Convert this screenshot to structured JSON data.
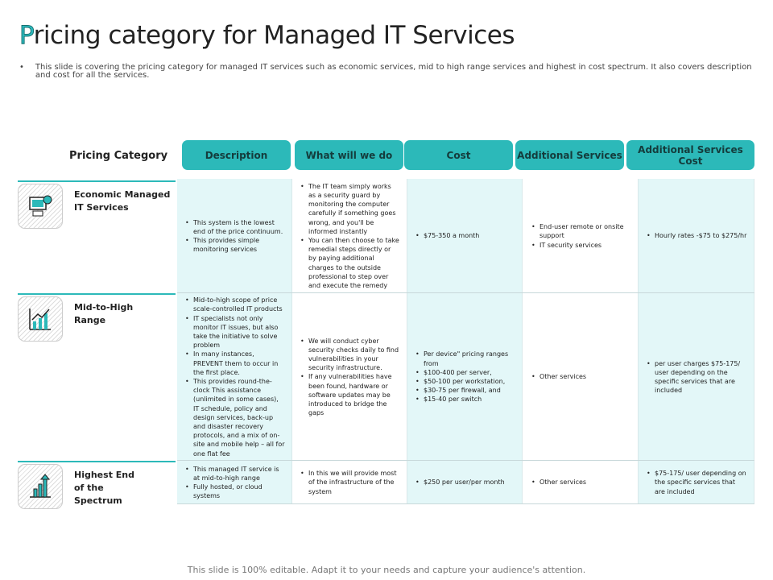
{
  "title": {
    "first": "P",
    "rest": "ricing category for Managed IT Services"
  },
  "intro": "This slide is covering the pricing category for managed IT services such as economic services, mid to high range services and highest in cost spectrum. It also covers description and cost for all the services.",
  "header_label": "Pricing Category",
  "columns": [
    "Description",
    "What will we do",
    "Cost",
    "Additional Services",
    "Additional Services Cost"
  ],
  "rows": [
    {
      "category": "Economic Managed IT Services",
      "icon": "computer-dollar-icon",
      "description": [
        "This system is the lowest end of the price continuum.",
        "This provides simple monitoring services"
      ],
      "what": [
        "The IT team simply works as a security guard by monitoring the computer carefully if something goes wrong, and you'll be informed instantly",
        "You can then choose to take remedial steps directly or by paying additional charges to the outside professional to step over and execute the remedy"
      ],
      "cost": [
        "$75-350 a month"
      ],
      "additional": [
        "End-user remote or onsite support",
        "IT security services"
      ],
      "additional_cost": [
        "Hourly rates -$75 to $275/hr"
      ]
    },
    {
      "category": "Mid-to-High Range",
      "icon": "growth-chart-icon",
      "description": [
        "Mid-to-high scope of price scale-controlled IT products",
        "IT specialists not only monitor IT issues, but also take the initiative to solve problem",
        "In many instances, PREVENT them to occur in the first place.",
        "This provides round-the-clock This assistance (unlimited in some cases), IT schedule, policy and design services, back-up and disaster recovery protocols, and a mix of on-site and mobile help – all for one flat fee"
      ],
      "what": [
        "We will conduct cyber security checks daily to find vulnerabilities in your security infrastructure.",
        "If any vulnerabilities have been found, hardware or software updates may be introduced to bridge the gaps"
      ],
      "cost": [
        "Per device\" pricing ranges from",
        "$100-400 per server,",
        "$50-100 per workstation,",
        "$30-75 per firewall, and",
        "$15-40 per switch"
      ],
      "additional": [
        "Other services"
      ],
      "additional_cost": [
        "per user charges $75-175/ user depending on the specific services that are included"
      ]
    },
    {
      "category": "Highest End of the Spectrum",
      "icon": "bar-chart-up-icon",
      "description": [
        "This managed IT service is at mid-to-high range",
        "Fully hosted, or cloud systems"
      ],
      "what": [
        "In this we will provide most of the infrastructure of the system"
      ],
      "cost": [
        "$250 per user/per month"
      ],
      "additional": [
        "Other services"
      ],
      "additional_cost": [
        "$75-175/ user depending on the specific services that are included"
      ]
    }
  ],
  "footer": "This slide is 100% editable. Adapt it to your needs and capture your audience's attention.",
  "colors": {
    "accent": "#2cb9b9",
    "cell_tint": "#e3f7f8"
  }
}
